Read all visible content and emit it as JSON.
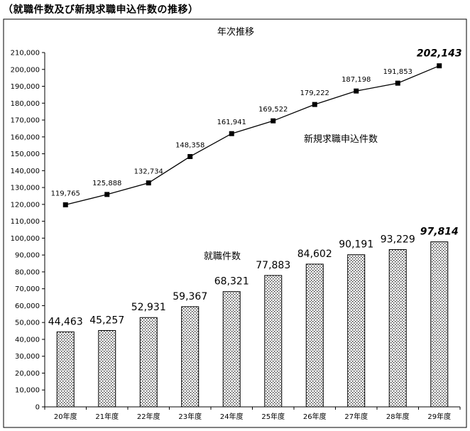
{
  "figure_title": "（就職件数及び新規求職申込件数の推移）",
  "chart_data": {
    "type": "bar+line",
    "title": "年次推移",
    "categories": [
      "20年度",
      "21年度",
      "22年度",
      "23年度",
      "24年度",
      "25年度",
      "26年度",
      "27年度",
      "28年度",
      "29年度"
    ],
    "ylim": [
      0,
      210000
    ],
    "ytick_step": 10000,
    "yticks": [
      "0",
      "10,000",
      "20,000",
      "30,000",
      "40,000",
      "50,000",
      "60,000",
      "70,000",
      "80,000",
      "90,000",
      "100,000",
      "110,000",
      "120,000",
      "130,000",
      "140,000",
      "150,000",
      "160,000",
      "170,000",
      "180,000",
      "190,000",
      "200,000",
      "210,000"
    ],
    "grid": false,
    "series": [
      {
        "name": "就職件数",
        "kind": "bar",
        "pattern": "dotted",
        "values": [
          44463,
          45257,
          52931,
          59367,
          68321,
          77883,
          84602,
          90191,
          93229,
          97814
        ],
        "labels": [
          "44,463",
          "45,257",
          "52,931",
          "59,367",
          "68,321",
          "77,883",
          "84,602",
          "90,191",
          "93,229",
          "97,814"
        ]
      },
      {
        "name": "新規求職申込件数",
        "kind": "line",
        "marker": "square",
        "values": [
          119765,
          125888,
          132734,
          148358,
          161941,
          169522,
          179222,
          187198,
          191853,
          202143
        ],
        "labels": [
          "119,765",
          "125,888",
          "132,734",
          "148,358",
          "161,941",
          "169,522",
          "179,222",
          "187,198",
          "191,853",
          "202,143"
        ]
      }
    ]
  }
}
